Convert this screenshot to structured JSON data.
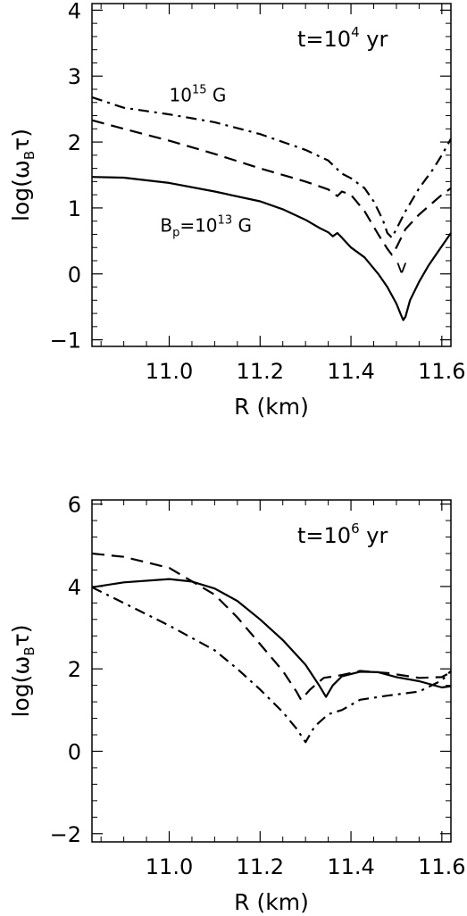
{
  "chart_data": [
    {
      "type": "line",
      "annotation": "t=10",
      "annotation_exp": "4",
      "annotation_unit": " yr",
      "xlabel": "R (km)",
      "ylabel": "log(ω",
      "ylabel_sub": "B",
      "ylabel_tail": "τ)",
      "xlim": [
        10.83,
        11.62
      ],
      "ylim": [
        -1.1,
        4.1
      ],
      "xticks": [
        11.0,
        11.2,
        11.4,
        11.6
      ],
      "xtick_labels": [
        "11.0",
        "11.2",
        "11.4",
        "11.6"
      ],
      "yticks": [
        -1,
        0,
        1,
        2,
        3,
        4
      ],
      "ytick_labels": [
        "−1",
        "0",
        "1",
        "2",
        "3",
        "4"
      ],
      "labels": [
        {
          "text": "10",
          "exp": "15",
          "tail": " G",
          "x": 11.0,
          "y": 2.62
        },
        {
          "text": "B",
          "sub": "p",
          "mid": "=10",
          "exp": "13",
          "tail": " G",
          "x": 10.98,
          "y": 0.64
        },
        {
          "text": "v",
          "x": 11.5,
          "y": 0.02
        }
      ],
      "series": [
        {
          "style": "solid",
          "points": [
            [
              10.83,
              1.47
            ],
            [
              10.9,
              1.46
            ],
            [
              11.0,
              1.38
            ],
            [
              11.1,
              1.25
            ],
            [
              11.2,
              1.1
            ],
            [
              11.25,
              0.98
            ],
            [
              11.3,
              0.82
            ],
            [
              11.33,
              0.7
            ],
            [
              11.35,
              0.63
            ],
            [
              11.36,
              0.57
            ],
            [
              11.37,
              0.62
            ],
            [
              11.38,
              0.55
            ],
            [
              11.4,
              0.4
            ],
            [
              11.43,
              0.25
            ],
            [
              11.46,
              0.0
            ],
            [
              11.48,
              -0.2
            ],
            [
              11.5,
              -0.45
            ],
            [
              11.51,
              -0.62
            ],
            [
              11.515,
              -0.7
            ],
            [
              11.52,
              -0.65
            ],
            [
              11.53,
              -0.4
            ],
            [
              11.55,
              -0.12
            ],
            [
              11.57,
              0.12
            ],
            [
              11.59,
              0.32
            ],
            [
              11.61,
              0.52
            ],
            [
              11.62,
              0.62
            ]
          ]
        },
        {
          "style": "dash",
          "points": [
            [
              10.83,
              2.33
            ],
            [
              10.9,
              2.2
            ],
            [
              11.0,
              2.02
            ],
            [
              11.1,
              1.82
            ],
            [
              11.2,
              1.6
            ],
            [
              11.3,
              1.4
            ],
            [
              11.35,
              1.28
            ],
            [
              11.37,
              1.18
            ],
            [
              11.38,
              1.25
            ],
            [
              11.4,
              1.2
            ],
            [
              11.43,
              0.95
            ],
            [
              11.46,
              0.6
            ],
            [
              11.48,
              0.38
            ],
            [
              11.49,
              0.29
            ],
            [
              11.5,
              0.4
            ],
            [
              11.52,
              0.68
            ],
            [
              11.55,
              0.9
            ],
            [
              11.58,
              1.08
            ],
            [
              11.6,
              1.2
            ],
            [
              11.62,
              1.3
            ]
          ]
        },
        {
          "style": "dashdot",
          "points": [
            [
              10.83,
              2.68
            ],
            [
              10.9,
              2.52
            ],
            [
              11.0,
              2.42
            ],
            [
              11.1,
              2.3
            ],
            [
              11.2,
              2.12
            ],
            [
              11.3,
              1.88
            ],
            [
              11.35,
              1.72
            ],
            [
              11.38,
              1.52
            ],
            [
              11.4,
              1.45
            ],
            [
              11.43,
              1.3
            ],
            [
              11.45,
              1.1
            ],
            [
              11.47,
              0.82
            ],
            [
              11.48,
              0.62
            ],
            [
              11.49,
              0.55
            ],
            [
              11.5,
              0.68
            ],
            [
              11.52,
              0.95
            ],
            [
              11.55,
              1.3
            ],
            [
              11.58,
              1.58
            ],
            [
              11.6,
              1.8
            ],
            [
              11.62,
              2.05
            ]
          ]
        }
      ]
    },
    {
      "type": "line",
      "annotation": "t=10",
      "annotation_exp": "6",
      "annotation_unit": " yr",
      "xlabel": "R (km)",
      "ylabel": "log(ω",
      "ylabel_sub": "B",
      "ylabel_tail": "τ)",
      "xlim": [
        10.83,
        11.62
      ],
      "ylim": [
        -2.2,
        6.1
      ],
      "xticks": [
        11.0,
        11.2,
        11.4,
        11.6
      ],
      "xtick_labels": [
        "11.0",
        "11.2",
        "11.4",
        "11.6"
      ],
      "yticks": [
        -2,
        0,
        2,
        4,
        6
      ],
      "ytick_labels": [
        "−2",
        "0",
        "2",
        "4",
        "6"
      ],
      "labels": [],
      "series": [
        {
          "style": "solid",
          "points": [
            [
              10.83,
              3.98
            ],
            [
              10.9,
              4.1
            ],
            [
              11.0,
              4.18
            ],
            [
              11.05,
              4.12
            ],
            [
              11.1,
              3.95
            ],
            [
              11.15,
              3.65
            ],
            [
              11.2,
              3.2
            ],
            [
              11.25,
              2.7
            ],
            [
              11.3,
              2.1
            ],
            [
              11.33,
              1.6
            ],
            [
              11.345,
              1.32
            ],
            [
              11.36,
              1.6
            ],
            [
              11.38,
              1.82
            ],
            [
              11.42,
              1.93
            ],
            [
              11.46,
              1.92
            ],
            [
              11.5,
              1.8
            ],
            [
              11.55,
              1.7
            ],
            [
              11.6,
              1.55
            ],
            [
              11.62,
              1.58
            ]
          ]
        },
        {
          "style": "dash",
          "points": [
            [
              10.83,
              4.8
            ],
            [
              10.9,
              4.72
            ],
            [
              11.0,
              4.45
            ],
            [
              11.1,
              3.8
            ],
            [
              11.15,
              3.25
            ],
            [
              11.2,
              2.6
            ],
            [
              11.25,
              1.95
            ],
            [
              11.28,
              1.45
            ],
            [
              11.29,
              1.25
            ],
            [
              11.31,
              1.5
            ],
            [
              11.34,
              1.78
            ],
            [
              11.38,
              1.85
            ],
            [
              11.42,
              1.95
            ],
            [
              11.48,
              1.9
            ],
            [
              11.55,
              1.78
            ],
            [
              11.6,
              1.8
            ],
            [
              11.62,
              1.92
            ]
          ]
        },
        {
          "style": "dashdot",
          "points": [
            [
              10.83,
              3.98
            ],
            [
              10.9,
              3.6
            ],
            [
              11.0,
              3.05
            ],
            [
              11.1,
              2.45
            ],
            [
              11.15,
              2.0
            ],
            [
              11.2,
              1.5
            ],
            [
              11.25,
              0.95
            ],
            [
              11.28,
              0.55
            ],
            [
              11.3,
              0.22
            ],
            [
              11.32,
              0.6
            ],
            [
              11.35,
              0.9
            ],
            [
              11.38,
              1.0
            ],
            [
              11.42,
              1.25
            ],
            [
              11.48,
              1.35
            ],
            [
              11.55,
              1.45
            ],
            [
              11.6,
              1.72
            ],
            [
              11.62,
              1.95
            ]
          ]
        }
      ]
    }
  ]
}
